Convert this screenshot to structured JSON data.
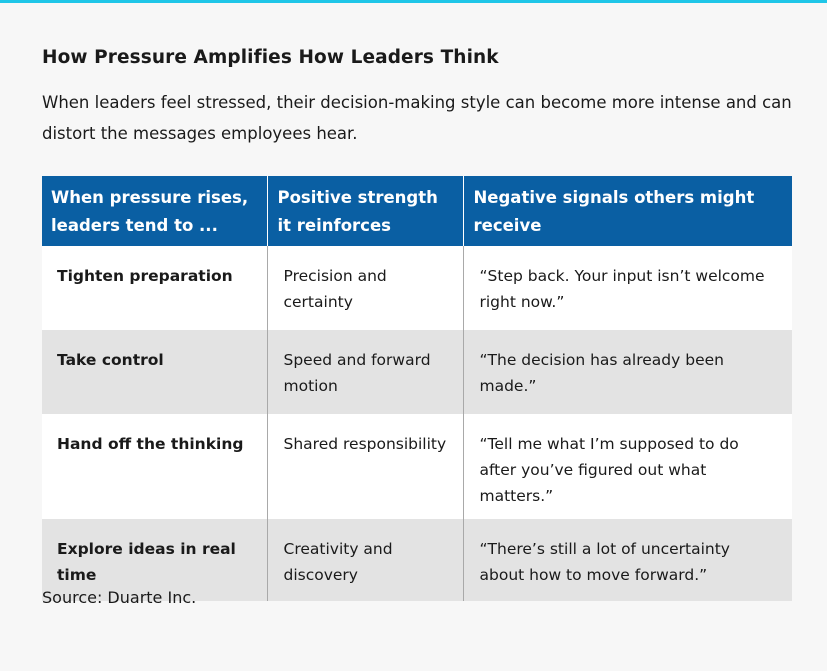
{
  "title": "How Pressure Amplifies How Leaders Think",
  "subtitle": "When leaders feel stressed, their decision-making style can become more intense and can distort the messages employees hear.",
  "colors": {
    "header_bg": "#0a5fa3",
    "accent_bar": "#1fc6e8",
    "row_alt": "#e3e3e3"
  },
  "table": {
    "headers": [
      "When pressure rises, leaders tend to ...",
      "Positive strength it reinforces",
      "Negative signals others might receive"
    ],
    "rows": [
      {
        "tendency": "Tighten preparation",
        "strength": "Precision and certainty",
        "signal": "“Step back. Your input isn’t welcome right now.”"
      },
      {
        "tendency": "Take control",
        "strength": "Speed and forward motion",
        "signal": "“The decision has already been made.”"
      },
      {
        "tendency": "Hand off the thinking",
        "strength": "Shared responsibility",
        "signal": "“Tell me what I’m supposed to do after you’ve figured out what matters.”"
      },
      {
        "tendency": "Explore ideas in real time",
        "strength": "Creativity and discovery",
        "signal": "“There’s still a lot of uncertainty about how to move forward.”"
      }
    ]
  },
  "source": "Source: Duarte Inc."
}
